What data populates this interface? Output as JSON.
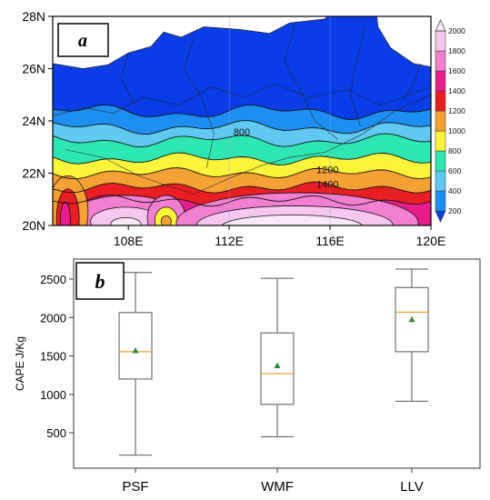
{
  "chart_data": [
    {
      "panel": "a",
      "type": "heatmap",
      "x_ticks": [
        "108E",
        "112E",
        "116E",
        "120E"
      ],
      "x_tick_values": [
        108,
        112,
        116,
        120
      ],
      "xlim": [
        105,
        120
      ],
      "y_ticks": [
        "20N",
        "22N",
        "24N",
        "26N",
        "28N"
      ],
      "y_tick_values": [
        20,
        22,
        24,
        26,
        28
      ],
      "ylim": [
        20,
        28
      ],
      "colorbar": {
        "ticks": [
          "200",
          "400",
          "600",
          "800",
          "1000",
          "1200",
          "1400",
          "1600",
          "1800",
          "2000"
        ],
        "colors": [
          "#0a3de8",
          "#1e8ff2",
          "#5fc9f2",
          "#2ee6b2",
          "#fcf43a",
          "#f6a135",
          "#e91e22",
          "#e91e8c",
          "#f27fd0",
          "#f6c8ef",
          "#fbe9fb"
        ]
      },
      "contour_labels": [
        "800",
        "1200",
        "1400"
      ],
      "colors": {
        "land": "#ffffff"
      }
    },
    {
      "panel": "b",
      "type": "box",
      "categories": [
        "PSF",
        "WMF",
        "LLV"
      ],
      "boxes": [
        {
          "name": "PSF",
          "whisker_low": 210,
          "q1": 1200,
          "median": 1555,
          "mean": 1565,
          "q3": 2065,
          "whisker_high": 2585
        },
        {
          "name": "WMF",
          "whisker_low": 450,
          "q1": 870,
          "median": 1270,
          "mean": 1370,
          "q3": 1800,
          "whisker_high": 2510
        },
        {
          "name": "LLV",
          "whisker_low": 910,
          "q1": 1555,
          "median": 2070,
          "mean": 1970,
          "q3": 2390,
          "whisker_high": 2630
        }
      ],
      "ylabel": "CAPE J/Kg",
      "y_ticks": [
        "500",
        "1000",
        "1500",
        "2000",
        "2500"
      ],
      "y_tick_values": [
        500,
        1000,
        1500,
        2000,
        2500
      ],
      "ylim": [
        40,
        2760
      ],
      "colors": {
        "median": "#f6a02c",
        "mean": "#2e8b3a",
        "box": "#555555"
      }
    }
  ]
}
